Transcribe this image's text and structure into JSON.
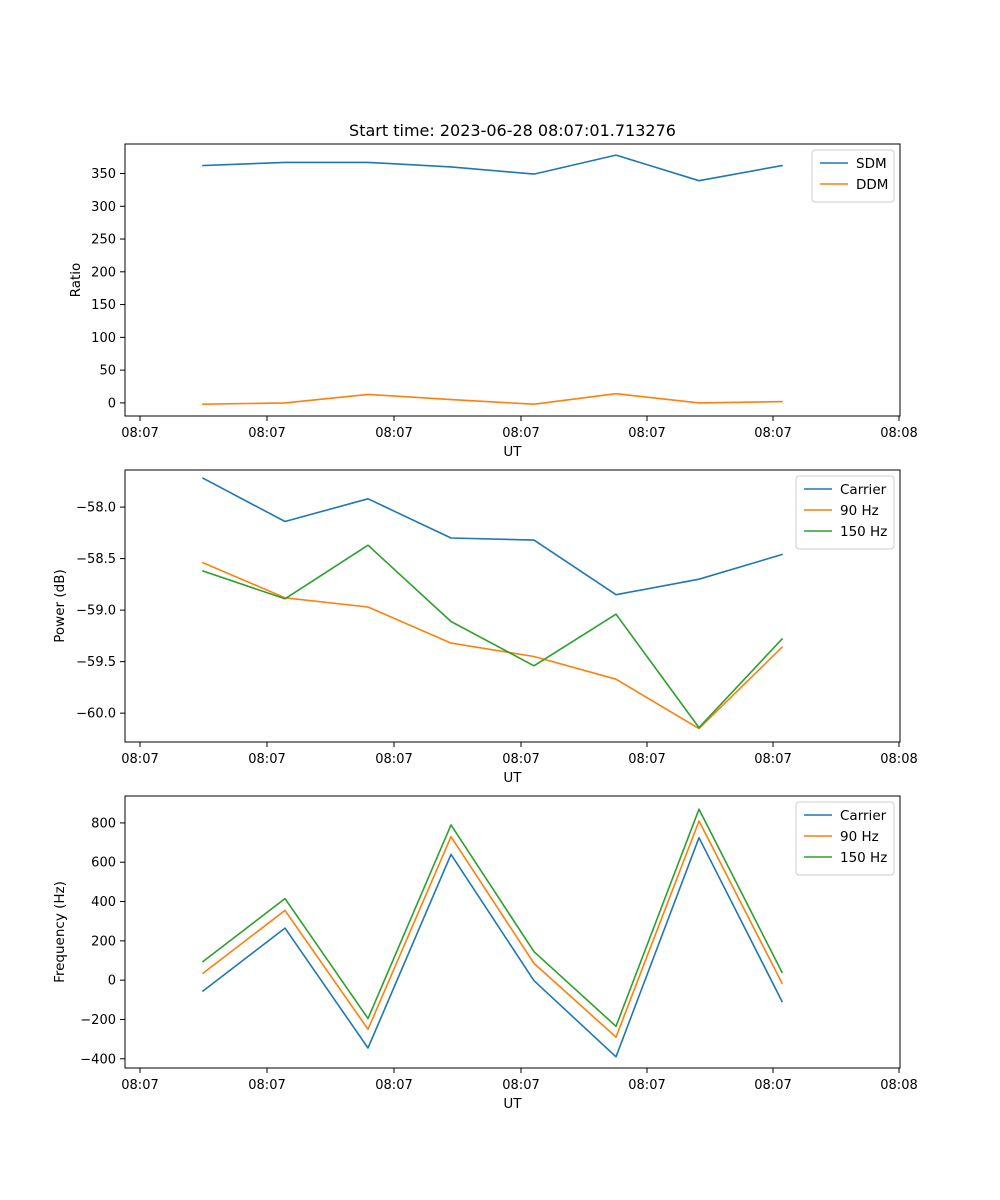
{
  "chart_data": [
    {
      "type": "line",
      "title": "Start time: 2023-06-28 08:07:01.713276",
      "xlabel": "UT",
      "ylabel": "Ratio",
      "x_tick_labels": [
        "08:07",
        "08:07",
        "08:07",
        "08:07",
        "08:07",
        "08:07",
        "08:08"
      ],
      "y_ticks": [
        0,
        50,
        100,
        150,
        200,
        250,
        300,
        350
      ],
      "ylim": [
        -20,
        395
      ],
      "grid": false,
      "legend_position": "top-right",
      "series": [
        {
          "name": "SDM",
          "color": "#1f77b4",
          "values": [
            362,
            367,
            367,
            360,
            349,
            378,
            339,
            362
          ]
        },
        {
          "name": "DDM",
          "color": "#ff7f0e",
          "values": [
            -2,
            0,
            13,
            5,
            -2,
            14,
            0,
            2
          ]
        }
      ]
    },
    {
      "type": "line",
      "title": "",
      "xlabel": "UT",
      "ylabel": "Power (dB)",
      "x_tick_labels": [
        "08:07",
        "08:07",
        "08:07",
        "08:07",
        "08:07",
        "08:07",
        "08:08"
      ],
      "y_ticks": [
        -60.0,
        -59.5,
        -59.0,
        -58.5,
        -58.0
      ],
      "y_tick_labels": [
        "−60.0",
        "−59.5",
        "−59.0",
        "−58.5",
        "−58.0"
      ],
      "ylim": [
        -60.28,
        -57.64
      ],
      "grid": false,
      "legend_position": "top-right",
      "series": [
        {
          "name": "Carrier",
          "color": "#1f77b4",
          "values": [
            -57.72,
            -58.14,
            -57.92,
            -58.3,
            -58.32,
            -58.85,
            -58.7,
            -58.46
          ]
        },
        {
          "name": "90 Hz",
          "color": "#ff7f0e",
          "values": [
            -58.54,
            -58.88,
            -58.97,
            -59.32,
            -59.45,
            -59.67,
            -60.15,
            -59.36
          ]
        },
        {
          "name": "150 Hz",
          "color": "#2ca02c",
          "values": [
            -58.62,
            -58.89,
            -58.37,
            -59.11,
            -59.54,
            -59.04,
            -60.14,
            -59.28
          ]
        }
      ]
    },
    {
      "type": "line",
      "title": "",
      "xlabel": "UT",
      "ylabel": "Frequency (Hz)",
      "x_tick_labels": [
        "08:07",
        "08:07",
        "08:07",
        "08:07",
        "08:07",
        "08:07",
        "08:08"
      ],
      "y_ticks": [
        -400,
        -200,
        0,
        200,
        400,
        600,
        800
      ],
      "y_tick_labels": [
        "−400",
        "−200",
        "0",
        "200",
        "400",
        "600",
        "800"
      ],
      "ylim": [
        -447,
        937
      ],
      "grid": false,
      "legend_position": "top-right",
      "series": [
        {
          "name": "Carrier",
          "color": "#1f77b4",
          "values": [
            -55,
            265,
            -345,
            640,
            -3,
            -390,
            725,
            -108
          ]
        },
        {
          "name": "90 Hz",
          "color": "#ff7f0e",
          "values": [
            35,
            355,
            -250,
            730,
            85,
            -290,
            810,
            -15
          ]
        },
        {
          "name": "150 Hz",
          "color": "#2ca02c",
          "values": [
            95,
            415,
            -195,
            790,
            145,
            -235,
            870,
            40
          ]
        }
      ]
    }
  ]
}
